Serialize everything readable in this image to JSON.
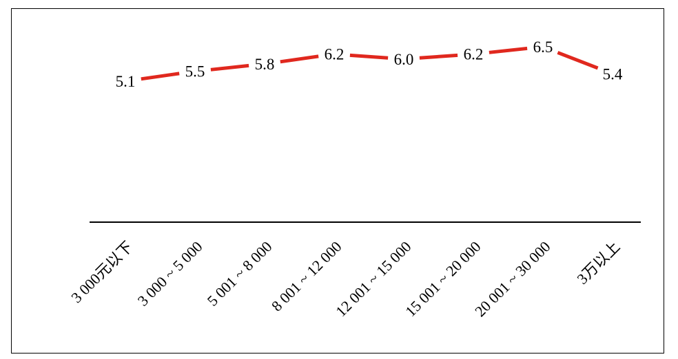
{
  "chart_data": {
    "type": "line",
    "title": "",
    "xlabel": "",
    "ylabel": "",
    "categories": [
      "3 000元以下",
      "3 000 ~ 5 000",
      "5 001 ~ 8 000",
      "8 001 ~ 12 000",
      "12 001 ~ 15 000",
      "15 001 ~ 20 000",
      "20 001 ~ 30 000",
      "3万以上"
    ],
    "series": [
      {
        "values": [
          5.1,
          5.5,
          5.8,
          6.2,
          6.0,
          6.2,
          6.5,
          5.4
        ],
        "labels": [
          "5.1",
          "5.5",
          "5.8",
          "6.2",
          "6.0",
          "6.2",
          "6.5",
          "5.4"
        ],
        "color": "#e0281e"
      }
    ],
    "ylim": [
      0,
      7
    ],
    "grid": false,
    "legend": "none",
    "axis_color": "#000000"
  }
}
